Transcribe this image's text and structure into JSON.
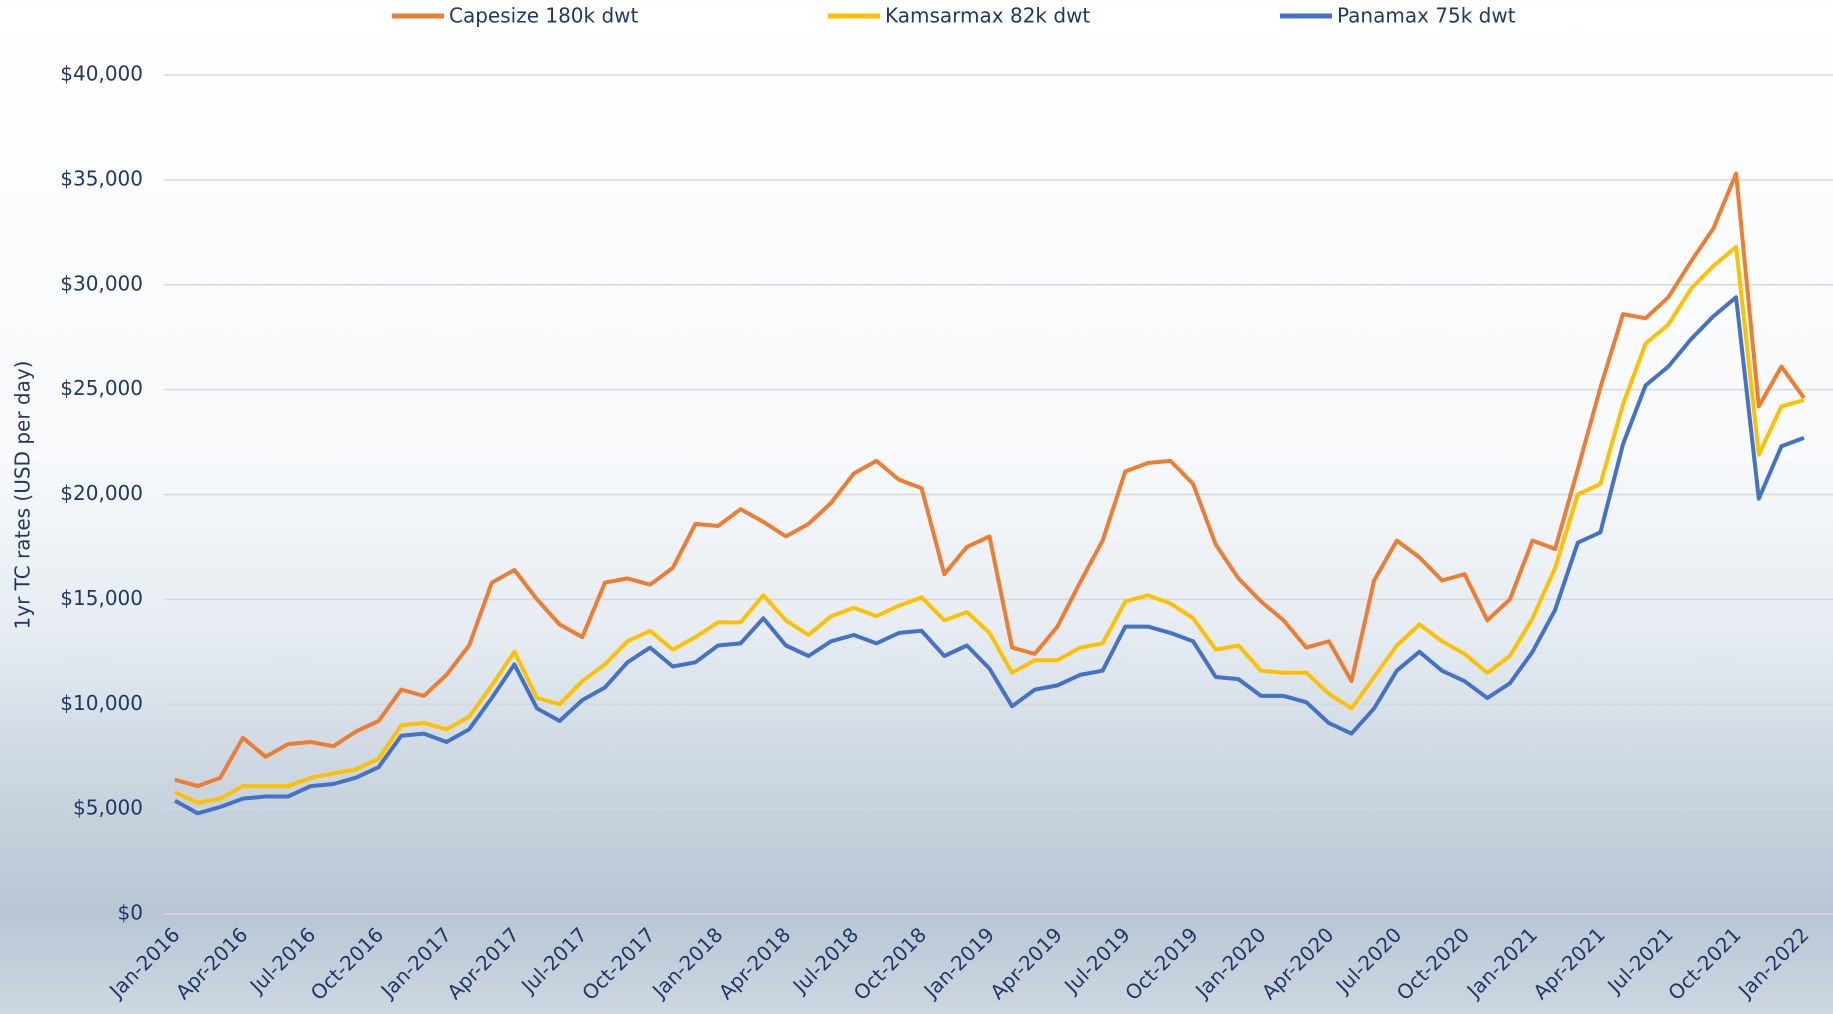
{
  "chart_data": {
    "type": "line",
    "y_label": "1yr TC rates  (USD per day)",
    "categories": [
      "Jan-2016",
      null,
      null,
      "Apr-2016",
      null,
      null,
      "Jul-2016",
      null,
      null,
      "Oct-2016",
      null,
      null,
      "Jan-2017",
      null,
      null,
      "Apr-2017",
      null,
      null,
      "Jul-2017",
      null,
      null,
      "Oct-2017",
      null,
      null,
      "Jan-2018",
      null,
      null,
      "Apr-2018",
      null,
      null,
      "Jul-2018",
      null,
      null,
      "Oct-2018",
      null,
      null,
      "Jan-2019",
      null,
      null,
      "Apr-2019",
      null,
      null,
      "Jul-2019",
      null,
      null,
      "Oct-2019",
      null,
      null,
      "Jan-2020",
      null,
      null,
      "Apr-2020",
      null,
      null,
      "Jul-2020",
      null,
      null,
      "Oct-2020",
      null,
      null,
      "Jan-2021",
      null,
      null,
      "Apr-2021",
      null,
      null,
      "Jul-2021",
      null,
      null,
      "Oct-2021",
      null,
      null,
      "Jan-2022"
    ],
    "series": [
      {
        "name": "Capesize 180k dwt",
        "color": "#ed7d31",
        "values": [
          6400,
          6100,
          6500,
          8400,
          7500,
          8100,
          8200,
          8000,
          8700,
          9200,
          10700,
          10400,
          11400,
          12800,
          15800,
          16400,
          15000,
          13800,
          13200,
          15800,
          16000,
          15700,
          16500,
          18600,
          18500,
          19300,
          18700,
          18000,
          18600,
          19600,
          21000,
          21600,
          20700,
          20300,
          16200,
          17500,
          18000,
          12700,
          12400,
          13700,
          15800,
          17800,
          21100,
          21500,
          21600,
          20500,
          17600,
          16000,
          14900,
          14000,
          12700,
          13000,
          11100,
          15900,
          17800,
          17000,
          15900,
          16200,
          14000,
          15000,
          17800,
          17400,
          21200,
          25100,
          28600,
          28400,
          29400,
          31100,
          32700,
          35300,
          24200,
          26100,
          24600
        ]
      },
      {
        "name": "Kamsarmax 82k dwt",
        "color": "#ffc000",
        "values": [
          5800,
          5300,
          5500,
          6100,
          6100,
          6100,
          6500,
          6700,
          6900,
          7400,
          9000,
          9100,
          8800,
          9400,
          10900,
          12500,
          10300,
          10000,
          11100,
          11900,
          13000,
          13500,
          12600,
          13200,
          13900,
          13900,
          15200,
          14000,
          13300,
          14200,
          14600,
          14200,
          14700,
          15100,
          14000,
          14400,
          13400,
          11500,
          12100,
          12100,
          12700,
          12900,
          14900,
          15200,
          14800,
          14100,
          12600,
          12800,
          11600,
          11500,
          11500,
          10500,
          9800,
          11300,
          12800,
          13800,
          13000,
          12400,
          11500,
          12300,
          14100,
          16500,
          20000,
          20500,
          24300,
          27200,
          28100,
          29800,
          30900,
          31800,
          21900,
          24200,
          24500
        ]
      },
      {
        "name": "Panamax 75k dwt",
        "color": "#4472c4",
        "values": [
          5400,
          4800,
          5100,
          5500,
          5600,
          5600,
          6100,
          6200,
          6500,
          7000,
          8500,
          8600,
          8200,
          8800,
          10300,
          11900,
          9800,
          9200,
          10200,
          10800,
          12000,
          12700,
          11800,
          12000,
          12800,
          12900,
          14100,
          12800,
          12300,
          13000,
          13300,
          12900,
          13400,
          13500,
          12300,
          12800,
          11700,
          9900,
          10700,
          10900,
          11400,
          11600,
          13700,
          13700,
          13400,
          13000,
          11300,
          11200,
          10400,
          10400,
          10100,
          9100,
          8600,
          9800,
          11600,
          12500,
          11600,
          11100,
          10300,
          11000,
          12500,
          14500,
          17700,
          18200,
          22400,
          25200,
          26100,
          27400,
          28500,
          29400,
          19800,
          22300,
          22700
        ]
      }
    ],
    "ylim": [
      0,
      40000
    ],
    "yticks": [
      {
        "value": 0,
        "label": "$0"
      },
      {
        "value": 5000,
        "label": "$5,000"
      },
      {
        "value": 10000,
        "label": "$10,000"
      },
      {
        "value": 15000,
        "label": "$15,000"
      },
      {
        "value": 20000,
        "label": "$20,000"
      },
      {
        "value": 25000,
        "label": "$25,000"
      },
      {
        "value": 30000,
        "label": "$30,000"
      },
      {
        "value": 35000,
        "label": "$35,000"
      },
      {
        "value": 40000,
        "label": "$40,000"
      }
    ],
    "grid": true,
    "legend": "top"
  }
}
